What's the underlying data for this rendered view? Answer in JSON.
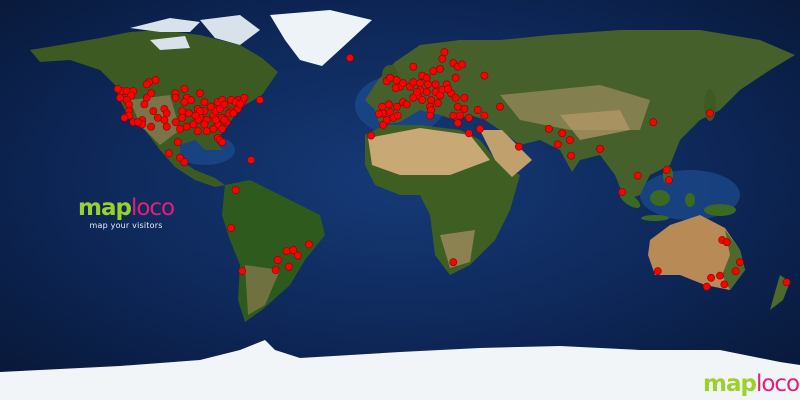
{
  "brand": {
    "logo_part1": "map",
    "logo_part2": "loco",
    "tagline": "map your visitors",
    "color_map": "#9ad22a",
    "color_loco": "#e0207a"
  },
  "marker_color": "#ff0000",
  "visitors": [
    [
      -110,
      54
    ],
    [
      -113,
      53
    ],
    [
      -114,
      52
    ],
    [
      -125,
      49
    ],
    [
      -123,
      49
    ],
    [
      -120,
      49
    ],
    [
      -121,
      47
    ],
    [
      -123,
      45
    ],
    [
      -114,
      46
    ],
    [
      -112,
      48
    ],
    [
      -115,
      43
    ],
    [
      -101,
      48
    ],
    [
      -97,
      50
    ],
    [
      -96,
      46
    ],
    [
      -90,
      48
    ],
    [
      -122,
      40
    ],
    [
      -122,
      38
    ],
    [
      -120,
      35
    ],
    [
      -116,
      36
    ],
    [
      -111,
      40
    ],
    [
      -109,
      37
    ],
    [
      -106,
      41
    ],
    [
      -105,
      39
    ],
    [
      -101,
      35
    ],
    [
      -98,
      40
    ],
    [
      -98,
      37
    ],
    [
      -97,
      44
    ],
    [
      -94,
      45
    ],
    [
      -95,
      39
    ],
    [
      -91,
      41
    ],
    [
      -90,
      37
    ],
    [
      -88,
      44
    ],
    [
      -85,
      42
    ],
    [
      -82,
      44
    ],
    [
      -80,
      45
    ],
    [
      -76,
      45
    ],
    [
      -73,
      45
    ],
    [
      -71,
      44
    ],
    [
      -63,
      45
    ],
    [
      -76,
      40
    ],
    [
      -73,
      41
    ],
    [
      -80,
      37
    ],
    [
      -84,
      38
    ],
    [
      -87,
      36
    ],
    [
      -91,
      36
    ],
    [
      -96,
      33
    ],
    [
      -99,
      32
    ],
    [
      -105,
      33
    ],
    [
      -112,
      33
    ],
    [
      -116,
      34
    ],
    [
      -118,
      35
    ],
    [
      -91,
      31
    ],
    [
      -87,
      31
    ],
    [
      -82,
      34
    ],
    [
      -78,
      35
    ],
    [
      -82,
      28
    ],
    [
      -81,
      27
    ],
    [
      -80,
      26
    ],
    [
      -100,
      26
    ],
    [
      -104,
      21
    ],
    [
      -99,
      19
    ],
    [
      -97,
      17
    ],
    [
      -67,
      18
    ],
    [
      -83,
      40
    ],
    [
      -81,
      41
    ],
    [
      -79,
      43
    ],
    [
      -74,
      44
    ],
    [
      -88,
      40
    ],
    [
      -90,
      40
    ],
    [
      -92,
      38
    ],
    [
      -77,
      39
    ],
    [
      -72,
      43
    ],
    [
      -79,
      36
    ],
    [
      -83,
      36
    ],
    [
      -88,
      34
    ],
    [
      -93,
      34
    ],
    [
      -84,
      32
    ],
    [
      -80,
      32
    ],
    [
      -75,
      39
    ],
    [
      -70,
      46
    ],
    [
      -127,
      50
    ],
    [
      -126,
      46
    ],
    [
      -124,
      37
    ],
    [
      -122,
      43
    ],
    [
      -101,
      46
    ],
    [
      -106,
      36
    ],
    [
      -74,
      4.5
    ],
    [
      -76,
      -12.6
    ],
    [
      -51,
      -23
    ],
    [
      -48,
      -22.5
    ],
    [
      -41,
      -20
    ],
    [
      -46,
      -25
    ],
    [
      -50,
      -30
    ],
    [
      -55,
      -27
    ],
    [
      -56,
      -31.5
    ],
    [
      -71,
      -32
    ],
    [
      20,
      66.6
    ],
    [
      19,
      63.5
    ],
    [
      24,
      61.6
    ],
    [
      26,
      60
    ],
    [
      28,
      61
    ],
    [
      6,
      60
    ],
    [
      15,
      58
    ],
    [
      18,
      59
    ],
    [
      38,
      56
    ],
    [
      25,
      55
    ],
    [
      10,
      56
    ],
    [
      12,
      55
    ],
    [
      -6,
      53.5
    ],
    [
      -4.5,
      55
    ],
    [
      -1.5,
      54
    ],
    [
      0,
      51
    ],
    [
      -2,
      50.4
    ],
    [
      1.4,
      52.6
    ],
    [
      4.5,
      51
    ],
    [
      6,
      53
    ],
    [
      9,
      52.6
    ],
    [
      12.6,
      52
    ],
    [
      16,
      52
    ],
    [
      21,
      52
    ],
    [
      19,
      49.5
    ],
    [
      16,
      48.6
    ],
    [
      12,
      48.6
    ],
    [
      8,
      47
    ],
    [
      6,
      46
    ],
    [
      10,
      45
    ],
    [
      14,
      45
    ],
    [
      18,
      47
    ],
    [
      23,
      48
    ],
    [
      25,
      46
    ],
    [
      29,
      46
    ],
    [
      26,
      42
    ],
    [
      29,
      41
    ],
    [
      35,
      40.5
    ],
    [
      45,
      42
    ],
    [
      17,
      43.6
    ],
    [
      13.5,
      42
    ],
    [
      14,
      40.5
    ],
    [
      13.5,
      38
    ],
    [
      24,
      38
    ],
    [
      27,
      38
    ],
    [
      31,
      37
    ],
    [
      26,
      34.6
    ],
    [
      38,
      38
    ],
    [
      1.4,
      44
    ],
    [
      3,
      43
    ],
    [
      -1.4,
      42
    ],
    [
      -5,
      43
    ],
    [
      -8,
      42
    ],
    [
      -7.6,
      39
    ],
    [
      -4.5,
      39.6
    ],
    [
      -3,
      37
    ],
    [
      -1,
      38
    ],
    [
      -6,
      36
    ],
    [
      -9.5,
      38.7
    ],
    [
      -7.6,
      33.8
    ],
    [
      -13,
      29
    ],
    [
      31,
      30
    ],
    [
      36,
      32
    ],
    [
      21.6,
      50
    ],
    [
      9,
      49.5
    ],
    [
      7.6,
      48.6
    ],
    [
      -22.5,
      64
    ],
    [
      53.5,
      24
    ],
    [
      67,
      32
    ],
    [
      73,
      30
    ],
    [
      76.5,
      27
    ],
    [
      71,
      25
    ],
    [
      77,
      20
    ],
    [
      90,
      23
    ],
    [
      114,
      35
    ],
    [
      107,
      11
    ],
    [
      100,
      3.6
    ],
    [
      120,
      13.5
    ],
    [
      121,
      9
    ],
    [
      139.5,
      39
    ],
    [
      24,
      -28
    ],
    [
      145,
      -18
    ],
    [
      147,
      -19
    ],
    [
      153,
      -28
    ],
    [
      151,
      -32
    ],
    [
      144,
      -34
    ],
    [
      140,
      -35
    ],
    [
      146,
      -38
    ],
    [
      138,
      -39
    ],
    [
      116,
      -32
    ],
    [
      174,
      -37
    ]
  ]
}
